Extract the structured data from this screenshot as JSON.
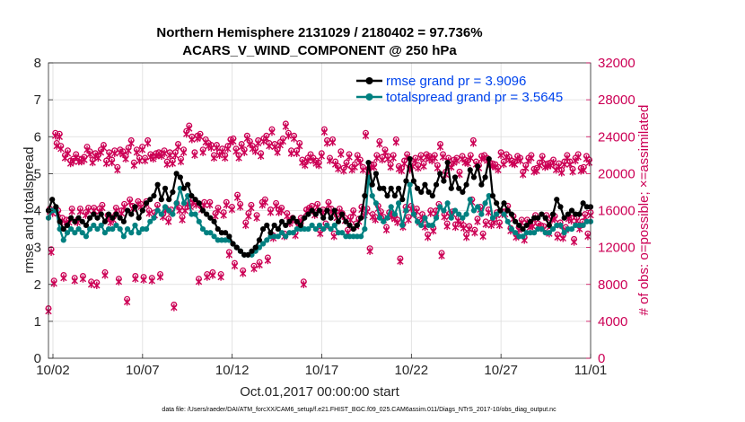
{
  "chart_data": {
    "type": "line",
    "title_line1": "Northern Hemisphere 2131029 / 2180402 = 97.736%",
    "title_line2": "ACARS_V_WIND_COMPONENT @ 250 hPa",
    "ylabel_left": "rmse and totalspread",
    "ylabel_right": "# of obs: o=possible; ×=assimilated",
    "xlabel": "Oct.01,2017 00:00:00 start",
    "footnote": "data file: /Users/raeder/DAI/ATM_forcXX/CAM6_setup/f.e21.FHIST_BGC.f09_025.CAM6assim.011/Diags_NTrS_2017-10/obs_diag_output.nc",
    "ylim_left": [
      0,
      8
    ],
    "ylim_right": [
      0,
      32000
    ],
    "yticks_left": [
      "0",
      "1",
      "2",
      "3",
      "4",
      "5",
      "6",
      "7",
      "8"
    ],
    "yticks_right": [
      "0",
      "4000",
      "8000",
      "12000",
      "16000",
      "20000",
      "24000",
      "28000",
      "32000"
    ],
    "x_range_days": [
      0.75,
      31.0
    ],
    "xticks": [
      {
        "day": 1,
        "label": "10/02"
      },
      {
        "day": 6,
        "label": "10/07"
      },
      {
        "day": 11,
        "label": "10/12"
      },
      {
        "day": 16,
        "label": "10/17"
      },
      {
        "day": 21,
        "label": "10/22"
      },
      {
        "day": 26,
        "label": "10/27"
      },
      {
        "day": 31,
        "label": "11/01"
      }
    ],
    "colors": {
      "rmse": "#000000",
      "spread": "#008080",
      "obs": "#cc0055",
      "legend_text": "#0044ee"
    },
    "series": [
      {
        "name": "rmse grand pr = 3.9096",
        "key": "rmse",
        "values": [
          4.0,
          4.3,
          4.1,
          3.7,
          3.5,
          3.6,
          3.8,
          3.7,
          3.8,
          3.7,
          3.6,
          3.8,
          3.9,
          3.8,
          3.9,
          3.7,
          3.9,
          3.8,
          3.9,
          3.8,
          3.7,
          4.0,
          3.9,
          4.1,
          3.8,
          4.0,
          4.2,
          4.3,
          4.4,
          4.7,
          4.3,
          4.6,
          4.3,
          4.5,
          5.0,
          4.9,
          4.6,
          4.7,
          4.4,
          4.3,
          4.2,
          4.0,
          3.9,
          3.8,
          3.7,
          3.5,
          3.4,
          3.4,
          3.3,
          3.1,
          3.0,
          2.9,
          2.8,
          2.8,
          2.9,
          3.0,
          3.2,
          3.5,
          3.6,
          3.4,
          3.6,
          3.5,
          3.7,
          3.6,
          3.7,
          3.8,
          3.7,
          3.6,
          3.8,
          3.9,
          4.0,
          3.9,
          4.0,
          3.8,
          4.0,
          3.8,
          4.0,
          3.7,
          3.9,
          3.7,
          3.6,
          3.5,
          3.6,
          3.8,
          4.4,
          5.3,
          4.7,
          5.0,
          4.6,
          4.6,
          4.4,
          4.6,
          4.4,
          4.6,
          4.3,
          4.8,
          5.4,
          4.8,
          4.6,
          4.5,
          4.7,
          4.5,
          4.4,
          4.7,
          5.0,
          4.8,
          5.3,
          4.6,
          4.9,
          4.6,
          4.5,
          4.7,
          5.1,
          4.9,
          5.2,
          4.7,
          4.9,
          5.4,
          4.4,
          4.2,
          4.0,
          4.2,
          4.0,
          3.9,
          3.7,
          3.6,
          3.5,
          3.6,
          3.7,
          3.8,
          3.8,
          3.9,
          3.8,
          3.6,
          3.9,
          4.3,
          4.1,
          3.8,
          3.9,
          4.0,
          3.9,
          3.9,
          4.2,
          4.1,
          4.1
        ]
      },
      {
        "name": "totalspread grand pr = 3.5645",
        "key": "spread",
        "values": [
          3.8,
          4.0,
          4.0,
          3.5,
          3.2,
          3.4,
          3.5,
          3.4,
          3.5,
          3.4,
          3.3,
          3.5,
          3.6,
          3.5,
          3.6,
          3.4,
          3.5,
          3.5,
          3.6,
          3.5,
          3.3,
          3.5,
          3.4,
          3.6,
          3.4,
          3.5,
          3.5,
          3.7,
          3.8,
          4.0,
          3.9,
          4.1,
          4.0,
          3.9,
          4.2,
          4.6,
          4.2,
          4.4,
          3.9,
          3.9,
          3.7,
          3.5,
          3.4,
          3.4,
          3.3,
          3.2,
          3.2,
          3.2,
          3.2,
          3.1,
          3.0,
          2.9,
          2.8,
          2.8,
          2.8,
          2.9,
          3.0,
          3.1,
          3.2,
          3.3,
          3.3,
          3.3,
          3.4,
          3.3,
          3.4,
          3.4,
          3.5,
          3.5,
          3.5,
          3.5,
          3.6,
          3.5,
          3.6,
          3.5,
          3.6,
          3.5,
          3.6,
          3.4,
          3.4,
          3.3,
          3.3,
          3.3,
          3.3,
          3.3,
          3.5,
          4.9,
          4.4,
          4.2,
          3.8,
          3.7,
          3.8,
          4.1,
          3.9,
          4.2,
          3.6,
          4.0,
          4.7,
          3.9,
          3.7,
          3.6,
          3.8,
          3.6,
          3.6,
          3.8,
          4.1,
          4.0,
          4.2,
          3.8,
          4.0,
          3.9,
          3.8,
          3.9,
          4.3,
          4.0,
          4.1,
          3.9,
          4.2,
          4.4,
          3.8,
          3.9,
          4.0,
          3.9,
          3.7,
          3.5,
          3.4,
          3.3,
          3.3,
          3.4,
          3.4,
          3.4,
          3.5,
          3.5,
          3.4,
          3.4,
          3.5,
          3.6,
          3.6,
          3.4,
          3.5,
          3.5,
          3.6,
          3.6,
          3.6,
          3.7,
          3.7
        ]
      }
    ],
    "obs_possible": [
      5400,
      16200,
      11800,
      16000,
      8400,
      24400,
      23300,
      16000,
      24300,
      23000,
      15200,
      9000,
      22000,
      15000,
      22500,
      15000,
      21400,
      16200,
      21600,
      8700,
      22100,
      15000,
      21600,
      16200,
      21600,
      8900,
      21800,
      15800,
      22900,
      16300,
      22400,
      8300,
      21500,
      16300,
      22200,
      8200,
      22000,
      16200,
      22600,
      16600,
      23100,
      9300,
      21400,
      15500,
      22300,
      15000,
      21500,
      15300,
      22500,
      16300,
      20700,
      8600,
      22600,
      16000,
      22400,
      16700,
      21900,
      6400,
      22800,
      17200,
      23600,
      16500,
      21200,
      8900,
      22600,
      17000,
      21700,
      16700,
      22900,
      8800,
      21700,
      17000,
      23600,
      16000,
      22100,
      8700,
      21900,
      15800,
      22200,
      16600,
      22300,
      9100,
      22200,
      15600,
      22500,
      16300,
      21300,
      15100,
      22300,
      16100,
      21400,
      5800,
      22300,
      16800,
      23200,
      16300,
      21600,
      15300,
      22600,
      16300,
      24600,
      17000,
      25200,
      16700,
      24000,
      17200,
      22300,
      16900,
      24100,
      8600,
      24300,
      16400,
      22600,
      16900,
      23700,
      9100,
      23300,
      16900,
      23100,
      9300,
      22000,
      15700,
      23100,
      16300,
      22300,
      9100,
      22700,
      15800,
      22000,
      16900,
      23000,
      11500,
      23700,
      16400,
      23800,
      10300,
      22700,
      17700,
      22000,
      16700,
      23200,
      9500,
      22600,
      14700,
      24100,
      15700,
      23500,
      16600,
      23000,
      10000,
      22700,
      15500,
      23600,
      10400,
      22200,
      16900,
      23800,
      17200,
      24100,
      10900,
      23300,
      16100,
      24800,
      13300,
      23200,
      16800,
      22600,
      16100,
      23400,
      16300,
      23800,
      13500,
      25400,
      15700,
      24400,
      14900,
      22500,
      15200,
      24100,
      13600,
      22500,
      14600,
      23300,
      15200,
      21500,
      8300,
      21200,
      16100,
      21700,
      16300,
      22100,
      16500,
      21700,
      15800,
      21400,
      16700,
      21200,
      13800,
      22200,
      16100,
      24800,
      14600,
      23600,
      16900,
      21700,
      16200,
      23700,
      13500,
      21300,
      15500,
      20800,
      16200,
      22400,
      15700,
      20600,
      15200,
      21200,
      13900,
      22100,
      15300,
      20700,
      16000,
      21000,
      14600,
      22000,
      15100,
      21500,
      16400,
      20700,
      15800,
      24400,
      16200,
      20500,
      11900,
      21000,
      15600,
      21000,
      15300,
      22000,
      16500,
      23500,
      15900,
      21800,
      15300,
      22600,
      14200,
      21900,
      15800,
      21000,
      15600,
      22000,
      15400,
      23700,
      15000,
      20800,
      10800,
      20600,
      14500,
      21400,
      16400,
      22100,
      15300,
      20700,
      16500,
      21100,
      15900,
      21700,
      16200,
      20900,
      15000,
      22000,
      15600,
      21100,
      14500,
      22100,
      13400,
      21900,
      16000,
      21700,
      14100,
      22000,
      16000,
      20900,
      16700,
      23200,
      11400,
      22100,
      15600,
      20200,
      14600,
      21700,
      15700,
      21000,
      15900,
      21500,
      14500,
      21700,
      15200,
      20200,
      14800,
      21900,
      14400,
      21500,
      13400,
      21400,
      14300,
      22000,
      17200,
      23600,
      13900,
      21300,
      15100,
      20900,
      16400,
      21900,
      13500,
      22000,
      14800,
      21700,
      16100,
      21200,
      14700,
      21100,
      15000,
      21000,
      15800,
      20700,
      14700,
      22300,
      15900,
      21300,
      15900,
      22100,
      16500,
      21800,
      14100,
      21400,
      15400,
      21300,
      13400,
      21900,
      14200,
      21700,
      15000,
      20200,
      13100,
      20900,
      15000,
      21700,
      14500,
      22000,
      14600,
      20500,
      15500,
      20600,
      14600,
      21200,
      14400,
      21900,
      14300,
      21000,
      15500,
      21100,
      13800,
      21200,
      15300,
      21500,
      15400,
      20700,
      13400,
      21100,
      14700,
      20400,
      13300,
      21300,
      14200,
      22000,
      15400,
      21300,
      15200,
      20500,
      12900,
      21700,
      15200,
      22100,
      14300,
      20600,
      14800,
      20700,
      15600,
      21900,
      13500,
      21500,
      15800
    ],
    "obs_assimilated": [
      5100,
      15900,
      11500,
      15700,
      8100,
      24100,
      23000,
      15700,
      24000,
      22700,
      14900,
      8700,
      21700,
      14700,
      22200,
      14700,
      21100,
      15900,
      21300,
      8400,
      21800,
      14700,
      21300,
      15900,
      21300,
      8600,
      21500,
      15500,
      22600,
      16000,
      22100,
      8000,
      21200,
      16000,
      21900,
      7900,
      21700,
      15900,
      22300,
      16300,
      22800,
      9000,
      21100,
      15200,
      22000,
      14700,
      21200,
      15000,
      22200,
      16000,
      20400,
      8300,
      22300,
      15700,
      22100,
      16400,
      21600,
      6100,
      22500,
      16900,
      23300,
      16200,
      20900,
      8600,
      22300,
      16700,
      21400,
      16400,
      22600,
      8500,
      21400,
      16700,
      23300,
      15700,
      21800,
      8400,
      21600,
      15500,
      21900,
      16300,
      22000,
      8800,
      21900,
      15300,
      22200,
      16000,
      21000,
      14800,
      22000,
      15800,
      21100,
      5500,
      22000,
      16500,
      22900,
      16000,
      21300,
      15000,
      22300,
      16000,
      24300,
      16700,
      24900,
      16400,
      23700,
      16900,
      22000,
      16600,
      23800,
      8300,
      24000,
      16100,
      22300,
      16600,
      23400,
      8800,
      23000,
      16600,
      22800,
      9000,
      21700,
      15400,
      22800,
      16000,
      22000,
      8800,
      22400,
      15500,
      21700,
      16600,
      22700,
      11200,
      23400,
      16100,
      23500,
      10000,
      22400,
      17400,
      21700,
      16400,
      22900,
      9200,
      22300,
      14400,
      23800,
      15400,
      23200,
      16300,
      22700,
      9700,
      22400,
      15200,
      23300,
      10100,
      21900,
      16600,
      23500,
      16900,
      23800,
      10600,
      23000,
      15800,
      24500,
      13000,
      22900,
      16500,
      22300,
      15800,
      23100,
      16000,
      23500,
      13200,
      25100,
      15400,
      24100,
      14600,
      22200,
      14900,
      23800,
      13300,
      22200,
      14300,
      23000,
      14900,
      21200,
      8000,
      20900,
      15800,
      21400,
      16000,
      21800,
      16200,
      21400,
      15500,
      21100,
      16400,
      20900,
      13500,
      21900,
      15800,
      24500,
      14300,
      23300,
      16600,
      21400,
      15900,
      23400,
      13200,
      21000,
      15200,
      20500,
      15900,
      22100,
      15400,
      20300,
      14900,
      20900,
      13600,
      21800,
      15000,
      20400,
      15700,
      20700,
      14300,
      21700,
      14800,
      21200,
      16100,
      20400,
      15500,
      24100,
      15900,
      20200,
      11600,
      20700,
      15300,
      20700,
      15000,
      21700,
      16200,
      23200,
      15600,
      21500,
      15000,
      22300,
      13900,
      21600,
      15500,
      20700,
      15300,
      21700,
      15100,
      23400,
      14700,
      20500,
      10500,
      20300,
      14200,
      21100,
      16100,
      21800,
      15000,
      20400,
      16200,
      20800,
      15600,
      21400,
      15900,
      20600,
      14700,
      21700,
      15300,
      20800,
      14200,
      21800,
      13100,
      21600,
      15700,
      21400,
      13800,
      21700,
      15700,
      20600,
      16400,
      22900,
      11100,
      21800,
      15300,
      19900,
      14300,
      21400,
      15400,
      20700,
      15600,
      21200,
      14200,
      21400,
      14900,
      19900,
      14500,
      21600,
      14100,
      21200,
      13100,
      21100,
      14000,
      21700,
      16900,
      23300,
      13600,
      21000,
      14800,
      20600,
      16100,
      21600,
      13200,
      21700,
      14500,
      21400,
      15800,
      20900,
      14400,
      20800,
      14700,
      20700,
      15500,
      20400,
      14400,
      22000,
      15600,
      21000,
      15600,
      21800,
      16200,
      21500,
      13800,
      21100,
      15100,
      21000,
      13100,
      21600,
      13900,
      21400,
      14700,
      19900,
      12800,
      20600,
      14700,
      21400,
      14200,
      21700,
      14300,
      20200,
      15200,
      20300,
      14300,
      20900,
      14100,
      21600,
      14000,
      20700,
      15200,
      20800,
      13500,
      20900,
      15000,
      21200,
      15100,
      20400,
      13100,
      20800,
      14400,
      20100,
      13000,
      21000,
      13900,
      21700,
      15100,
      21000,
      14900,
      20200,
      12600,
      21400,
      14900,
      21800,
      14000,
      20300,
      14500,
      20400,
      15300,
      21600,
      13200,
      21200,
      15500
    ]
  }
}
